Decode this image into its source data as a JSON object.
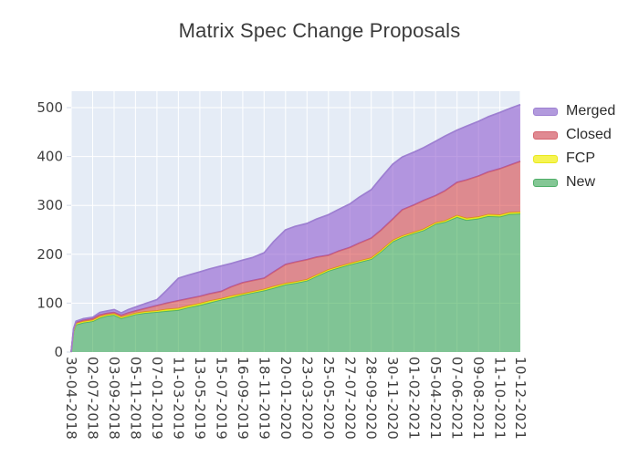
{
  "figure": {
    "title": "Matrix Spec Change Proposals",
    "background": "#ffffff",
    "plot_background": "#e5ecf6",
    "grid_color": "#ffffff",
    "tick_stub_color": "#d9dfeb",
    "tick_label_color": "#3f3f3f"
  },
  "legend": {
    "items": [
      {
        "label": "Merged",
        "fill": "#b29add",
        "line": "#9d7fd1"
      },
      {
        "label": "Closed",
        "fill": "#e08a92",
        "line": "#d4636e"
      },
      {
        "label": "FCP",
        "fill": "#f6f452",
        "line": "#e8e81e"
      },
      {
        "label": "New",
        "fill": "#84c795",
        "line": "#4fae68"
      }
    ]
  },
  "chart_data": {
    "type": "area",
    "stacked": true,
    "title": "Matrix Spec Change Proposals",
    "xlabel": "",
    "ylabel": "",
    "grid": true,
    "legend_position": "top-right",
    "ylim": [
      0,
      533.5
    ],
    "y_ticks": [
      0,
      100,
      200,
      300,
      400,
      500
    ],
    "x_range_days": [
      0,
      1320
    ],
    "x_ticks": [
      {
        "label": "30-04-2018",
        "d": 0
      },
      {
        "label": "02-07-2018",
        "d": 63
      },
      {
        "label": "03-09-2018",
        "d": 126
      },
      {
        "label": "05-11-2018",
        "d": 189
      },
      {
        "label": "07-01-2019",
        "d": 252
      },
      {
        "label": "11-03-2019",
        "d": 315
      },
      {
        "label": "13-05-2019",
        "d": 378
      },
      {
        "label": "15-07-2019",
        "d": 441
      },
      {
        "label": "16-09-2019",
        "d": 504
      },
      {
        "label": "18-11-2019",
        "d": 567
      },
      {
        "label": "20-01-2020",
        "d": 630
      },
      {
        "label": "23-03-2020",
        "d": 693
      },
      {
        "label": "25-05-2020",
        "d": 756
      },
      {
        "label": "27-07-2020",
        "d": 819
      },
      {
        "label": "28-09-2020",
        "d": 882
      },
      {
        "label": "30-11-2020",
        "d": 945
      },
      {
        "label": "01-02-2021",
        "d": 1008
      },
      {
        "label": "05-04-2021",
        "d": 1071
      },
      {
        "label": "07-06-2021",
        "d": 1134
      },
      {
        "label": "09-08-2021",
        "d": 1197
      },
      {
        "label": "11-10-2021",
        "d": 1260
      },
      {
        "label": "10-12-2021",
        "d": 1320
      }
    ],
    "x_dates": [
      "30-04-2018",
      "07-05-2018",
      "14-05-2018",
      "04-06-2018",
      "02-07-2018",
      "23-07-2018",
      "13-08-2018",
      "03-09-2018",
      "24-09-2018",
      "15-10-2018",
      "05-11-2018",
      "03-12-2018",
      "07-01-2019",
      "04-02-2019",
      "11-03-2019",
      "08-04-2019",
      "13-05-2019",
      "10-06-2019",
      "15-07-2019",
      "12-08-2019",
      "16-09-2019",
      "14-10-2019",
      "18-11-2019",
      "16-12-2019",
      "20-01-2020",
      "17-02-2020",
      "23-03-2020",
      "20-04-2020",
      "25-05-2020",
      "22-06-2020",
      "27-07-2020",
      "24-08-2020",
      "28-09-2020",
      "26-10-2020",
      "30-11-2020",
      "28-12-2020",
      "01-02-2021",
      "01-03-2021",
      "05-04-2021",
      "03-05-2021",
      "07-06-2021",
      "05-07-2021",
      "09-08-2021",
      "06-09-2021",
      "11-10-2021",
      "08-11-2021",
      "10-12-2021"
    ],
    "x_days": [
      0,
      7,
      14,
      35,
      63,
      84,
      105,
      126,
      147,
      168,
      189,
      217,
      252,
      280,
      315,
      343,
      378,
      406,
      441,
      469,
      504,
      532,
      567,
      595,
      630,
      658,
      693,
      721,
      756,
      784,
      819,
      847,
      882,
      910,
      945,
      973,
      1008,
      1036,
      1071,
      1099,
      1134,
      1162,
      1197,
      1225,
      1260,
      1288,
      1320
    ],
    "stack_order_bottom_to_top": [
      "New",
      "FCP",
      "Closed",
      "Merged"
    ],
    "series": [
      {
        "name": "New",
        "fill": "rgba(34,160,60,0.52)",
        "line": "#4fae68",
        "values": [
          0,
          42,
          56,
          60,
          63,
          70,
          74,
          76,
          69,
          73,
          77,
          80,
          82,
          84,
          86,
          91,
          96,
          101,
          107,
          111,
          117,
          121,
          126,
          131,
          138,
          141,
          146,
          155,
          166,
          172,
          179,
          184,
          190,
          205,
          226,
          235,
          243,
          249,
          262,
          266,
          276,
          270,
          273,
          278,
          277,
          282,
          283
        ]
      },
      {
        "name": "FCP",
        "fill": "rgba(255,255,0,0.7)",
        "line": "#e8e81e",
        "values": [
          0,
          2,
          2,
          2,
          2,
          2,
          2,
          2,
          2,
          2,
          2,
          2,
          2,
          3,
          3,
          3,
          3,
          3,
          2,
          3,
          2,
          2,
          2,
          3,
          2,
          2,
          2,
          2,
          2,
          2,
          2,
          2,
          2,
          2,
          2,
          2,
          2,
          2,
          2,
          2,
          3,
          3,
          3,
          3,
          3,
          3,
          3
        ]
      },
      {
        "name": "Closed",
        "fill": "rgba(214,39,40,0.5)",
        "line": "#d4636e",
        "values": [
          0,
          2,
          2,
          3,
          3,
          4,
          3,
          3,
          4,
          5,
          5,
          7,
          11,
          13,
          16,
          15,
          15,
          15,
          15,
          19,
          23,
          23,
          23,
          30,
          39,
          41,
          41,
          37,
          30,
          32,
          33,
          37,
          41,
          42,
          44,
          54,
          56,
          59,
          56,
          62,
          68,
          79,
          84,
          87,
          95,
          97,
          104
        ]
      },
      {
        "name": "Merged",
        "fill": "rgba(136,78,204,0.55)",
        "line": "#9d7fd1",
        "values": [
          0,
          2,
          3,
          3,
          3,
          5,
          5,
          6,
          5,
          7,
          8,
          10,
          12,
          26,
          46,
          48,
          50,
          51,
          52,
          48,
          46,
          47,
          52,
          62,
          71,
          73,
          74,
          78,
          83,
          85,
          89,
          94,
          99,
          107,
          112,
          108,
          108,
          108,
          111,
          112,
          107,
          110,
          112,
          113,
          115,
          116,
          116
        ]
      }
    ]
  }
}
